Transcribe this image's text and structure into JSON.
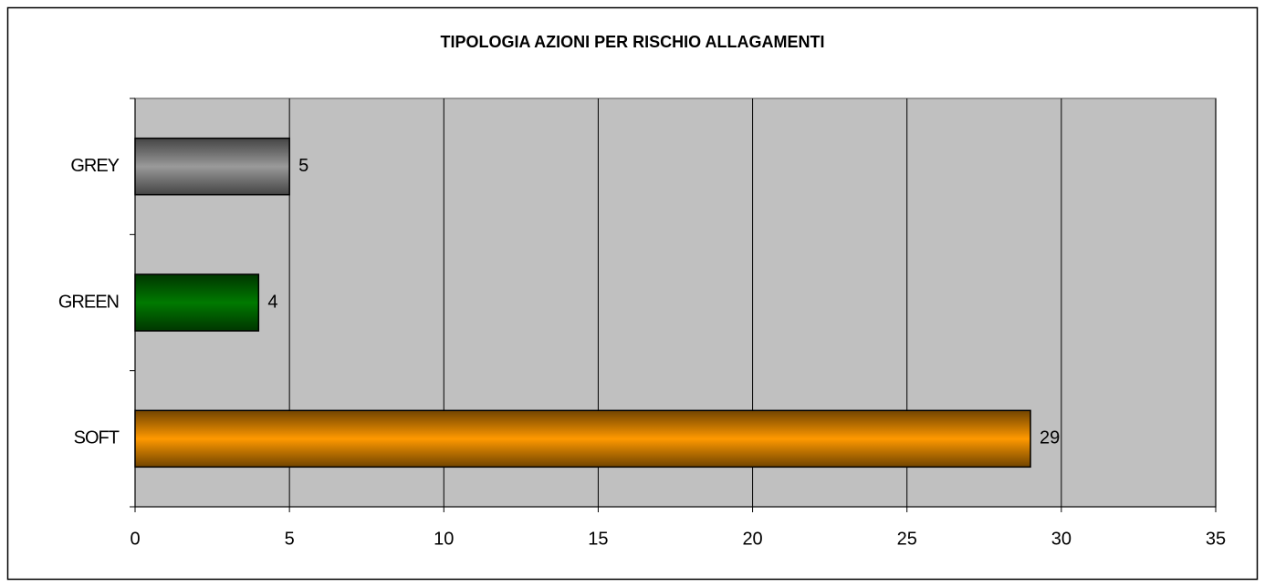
{
  "chart_data": {
    "type": "hbar",
    "title": "TIPOLOGIA AZIONI PER RISCHIO ALLAGAMENTI",
    "categories": [
      "GREY",
      "GREEN",
      "SOFT"
    ],
    "values": [
      5,
      4,
      29
    ],
    "colors": [
      "#9a9a9a",
      "#007a00",
      "#ff9900"
    ],
    "xlim": [
      0,
      35
    ],
    "xticks": [
      0,
      5,
      10,
      15,
      20,
      25,
      30,
      35
    ],
    "grid": true
  }
}
